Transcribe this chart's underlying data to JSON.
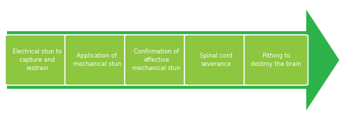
{
  "steps": [
    "Electrical stun to\ncapture and\nrestrain",
    "Application of\nmechanical stun",
    "Confirmation of\neffective\nmechanical stun",
    "Spinal cord\nseverance",
    "Pithing to\ndestroy the brain"
  ],
  "arrow_color": "#2db34a",
  "box_color": "#8dc63f",
  "box_border_color": "#ffffff",
  "text_color": "#ffffff",
  "background_color": "#ffffff",
  "fig_width": 5.0,
  "fig_height": 1.73,
  "dpi": 100
}
